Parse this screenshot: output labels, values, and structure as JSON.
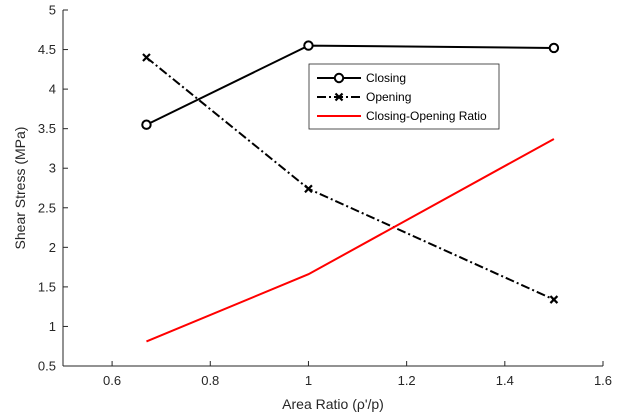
{
  "chart_data": {
    "type": "line",
    "xlabel": "Area Ratio (ρ'/p)",
    "ylabel": "Shear Stress (MPa)",
    "xlim": [
      0.5,
      1.6
    ],
    "ylim": [
      0.5,
      5
    ],
    "xticks": [
      0.6,
      0.8,
      1,
      1.2,
      1.4,
      1.6
    ],
    "yticks": [
      0.5,
      1,
      1.5,
      2,
      2.5,
      3,
      3.5,
      4,
      4.5,
      5
    ],
    "xtick_labels": [
      "0.6",
      "0.8",
      "1",
      "1.2",
      "1.4",
      "1.6"
    ],
    "ytick_labels": [
      "0.5",
      "1",
      "1.5",
      "2",
      "2.5",
      "3",
      "3.5",
      "4",
      "4.5",
      "5"
    ],
    "grid": false,
    "legend_position": "top-right",
    "x": [
      0.67,
      1.0,
      1.5
    ],
    "series": [
      {
        "name": "Closing",
        "values": [
          3.55,
          4.55,
          4.52
        ],
        "color": "#000000",
        "line": "solid",
        "marker": "circle"
      },
      {
        "name": "Opening",
        "values": [
          4.4,
          2.74,
          1.34
        ],
        "color": "#000000",
        "line": "dashdot",
        "marker": "x"
      },
      {
        "name": "Closing-Opening Ratio",
        "values": [
          0.81,
          1.66,
          3.37
        ],
        "color": "#ff0000",
        "line": "solid",
        "marker": "none"
      }
    ]
  }
}
